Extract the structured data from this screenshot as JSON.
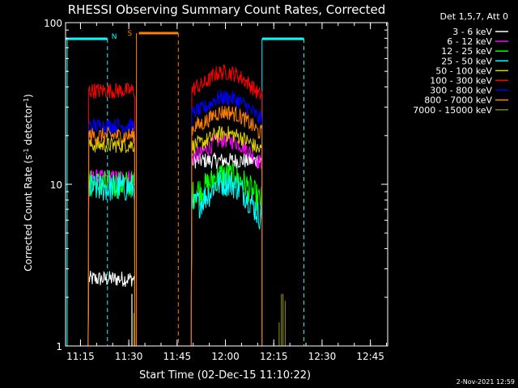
{
  "chart_data": {
    "type": "line",
    "title": "RHESSI Observing Summary Count Rates, Corrected",
    "xlabel": "Start Time (02-Dec-15 11:10:22)",
    "ylabel": "Corrected Count Rate (s⁻¹ detector⁻¹)",
    "yscale": "log",
    "ylim": [
      1,
      100
    ],
    "xlim_minutes": [
      0,
      100
    ],
    "x_ticks": [
      "11:15",
      "11:30",
      "11:45",
      "12:00",
      "12:15",
      "12:30",
      "12:45"
    ],
    "y_ticks": [
      "1",
      "10",
      "100"
    ],
    "legend_title": "Det 1,5,7, Att 0",
    "legend_position": "right",
    "footer_date": "2-Nov-2021 12:59",
    "flag_labels": {
      "night": "N",
      "saa": "S"
    },
    "colors": {
      "background": "#000000",
      "axes": "#ffffff",
      "night": "#00ffff",
      "saa": "#ff8000"
    },
    "series": [
      {
        "name": "3 - 6 keV",
        "color": "#ffffff",
        "seg1": 2.6,
        "seg2": 14,
        "rise": 0.0
      },
      {
        "name": "6 - 12 keV",
        "color": "#ff00ff",
        "seg1": 11.0,
        "seg2": 14.5,
        "rise": 0.35
      },
      {
        "name": "12 - 25 keV",
        "color": "#00ff00",
        "seg1": 10.0,
        "seg2": 8.5,
        "rise": 0.4
      },
      {
        "name": "25 - 50 keV",
        "color": "#00ffff",
        "seg1": 9.5,
        "seg2": 7.0,
        "rise": 0.55
      },
      {
        "name": "50 - 100 keV",
        "color": "#e0d000",
        "seg1": 17.5,
        "seg2": 17.0,
        "rise": 0.25
      },
      {
        "name": "100 - 300 keV",
        "color": "#ff0000",
        "seg1": 38,
        "seg2": 38,
        "rise": 0.35
      },
      {
        "name": "300 - 800 keV",
        "color": "#0000ff",
        "seg1": 23,
        "seg2": 27,
        "rise": 0.32
      },
      {
        "name": "800 - 7000 keV",
        "color": "#ff8000",
        "seg1": 20,
        "seg2": 22,
        "rise": 0.32
      },
      {
        "name": "7000 - 15000 keV",
        "color": "#808000",
        "seg1": 1.0,
        "seg2": 1.0,
        "rise": 0.0
      }
    ],
    "data_intervals_minutes": [
      [
        7,
        21.5
      ],
      [
        39,
        61
      ]
    ],
    "night_intervals_minutes": [
      [
        0,
        13
      ],
      [
        61,
        74
      ]
    ],
    "saa_intervals_minutes": [
      [
        22,
        35
      ]
    ]
  }
}
